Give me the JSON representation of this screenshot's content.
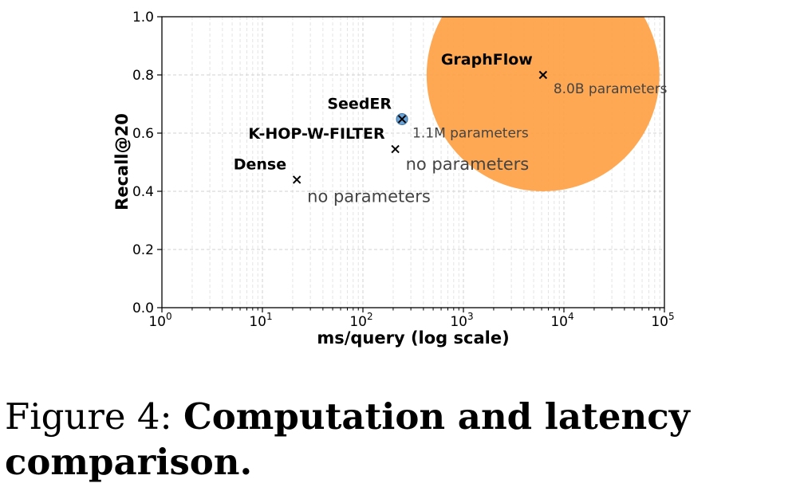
{
  "chart_data": {
    "type": "scatter",
    "xlabel": "ms/query (log scale)",
    "ylabel": "Recall@20",
    "xscale": "log",
    "xlim": [
      1,
      100000
    ],
    "ylim": [
      0.0,
      1.0
    ],
    "x_ticks": [
      1,
      10,
      100,
      1000,
      10000,
      100000
    ],
    "x_tick_labels": [
      {
        "base": "10",
        "exp": "0"
      },
      {
        "base": "10",
        "exp": "1"
      },
      {
        "base": "10",
        "exp": "2"
      },
      {
        "base": "10",
        "exp": "3"
      },
      {
        "base": "10",
        "exp": "4"
      },
      {
        "base": "10",
        "exp": "5"
      }
    ],
    "y_ticks": [
      0.0,
      0.2,
      0.4,
      0.6,
      0.8,
      1.0
    ],
    "y_tick_labels": [
      "0.0",
      "0.2",
      "0.4",
      "0.6",
      "0.8",
      "1.0"
    ],
    "grid": true,
    "points": [
      {
        "name": "Dense",
        "x": 22,
        "y": 0.44,
        "parameters": "no parameters",
        "bubble_color": null
      },
      {
        "name": "K-HOP-W-FILTER",
        "x": 210,
        "y": 0.545,
        "parameters": "no parameters",
        "bubble_color": null
      },
      {
        "name": "SeedER",
        "x": 245,
        "y": 0.648,
        "parameters": "1.1M parameters",
        "bubble_color": "#5b9bd5"
      },
      {
        "name": "GraphFlow",
        "x": 6200,
        "y": 0.8,
        "parameters": "8.0B parameters",
        "bubble_color": "#ff9f40"
      }
    ]
  },
  "caption": {
    "prefix": "Figure 4: ",
    "title": "Computation and latency comparison."
  }
}
